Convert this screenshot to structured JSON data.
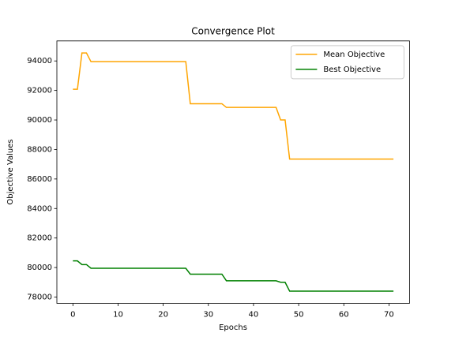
{
  "chart_data": {
    "type": "line",
    "title": "Convergence Plot",
    "xlabel": "Epochs",
    "ylabel": "Objective Values",
    "x": [
      0,
      1,
      2,
      3,
      4,
      5,
      6,
      7,
      8,
      9,
      10,
      11,
      12,
      13,
      14,
      15,
      16,
      17,
      18,
      19,
      20,
      21,
      22,
      23,
      24,
      25,
      26,
      27,
      28,
      29,
      30,
      31,
      32,
      33,
      34,
      35,
      36,
      37,
      38,
      39,
      40,
      41,
      42,
      43,
      44,
      45,
      46,
      47,
      48,
      49,
      50,
      51,
      52,
      53,
      54,
      55,
      56,
      57,
      58,
      59,
      60,
      61,
      62,
      63,
      64,
      65,
      66,
      67,
      68,
      69,
      70,
      71
    ],
    "series": [
      {
        "name": "Mean Objective",
        "color": "orange",
        "values": [
          92080,
          92080,
          94540,
          94540,
          93950,
          93950,
          93950,
          93950,
          93950,
          93950,
          93950,
          93950,
          93950,
          93950,
          93950,
          93950,
          93950,
          93950,
          93950,
          93950,
          93950,
          93950,
          93950,
          93950,
          93950,
          93950,
          91100,
          91100,
          91100,
          91100,
          91100,
          91100,
          91100,
          91100,
          90850,
          90850,
          90850,
          90850,
          90850,
          90850,
          90850,
          90850,
          90850,
          90850,
          90850,
          90850,
          90000,
          90000,
          87350,
          87350,
          87350,
          87350,
          87350,
          87350,
          87350,
          87350,
          87350,
          87350,
          87350,
          87350,
          87350,
          87350,
          87350,
          87350,
          87350,
          87350,
          87350,
          87350,
          87350,
          87350,
          87350,
          87350
        ]
      },
      {
        "name": "Best Objective",
        "color": "green",
        "values": [
          80450,
          80450,
          80200,
          80200,
          79950,
          79950,
          79950,
          79950,
          79950,
          79950,
          79950,
          79950,
          79950,
          79950,
          79950,
          79950,
          79950,
          79950,
          79950,
          79950,
          79950,
          79950,
          79950,
          79950,
          79950,
          79950,
          79550,
          79550,
          79550,
          79550,
          79550,
          79550,
          79550,
          79550,
          79100,
          79100,
          79100,
          79100,
          79100,
          79100,
          79100,
          79100,
          79100,
          79100,
          79100,
          79100,
          79000,
          79000,
          78400,
          78400,
          78400,
          78400,
          78400,
          78400,
          78400,
          78400,
          78400,
          78400,
          78400,
          78400,
          78400,
          78400,
          78400,
          78400,
          78400,
          78400,
          78400,
          78400,
          78400,
          78400,
          78400,
          78400
        ]
      }
    ],
    "xlim": [
      -3.55,
      74.55
    ],
    "xticks": [
      0,
      10,
      20,
      30,
      40,
      50,
      60,
      70
    ],
    "ylim": [
      77572,
      95358
    ],
    "yticks": [
      78000,
      80000,
      82000,
      84000,
      86000,
      88000,
      90000,
      92000,
      94000
    ],
    "grid": false,
    "legend": "upper right"
  }
}
